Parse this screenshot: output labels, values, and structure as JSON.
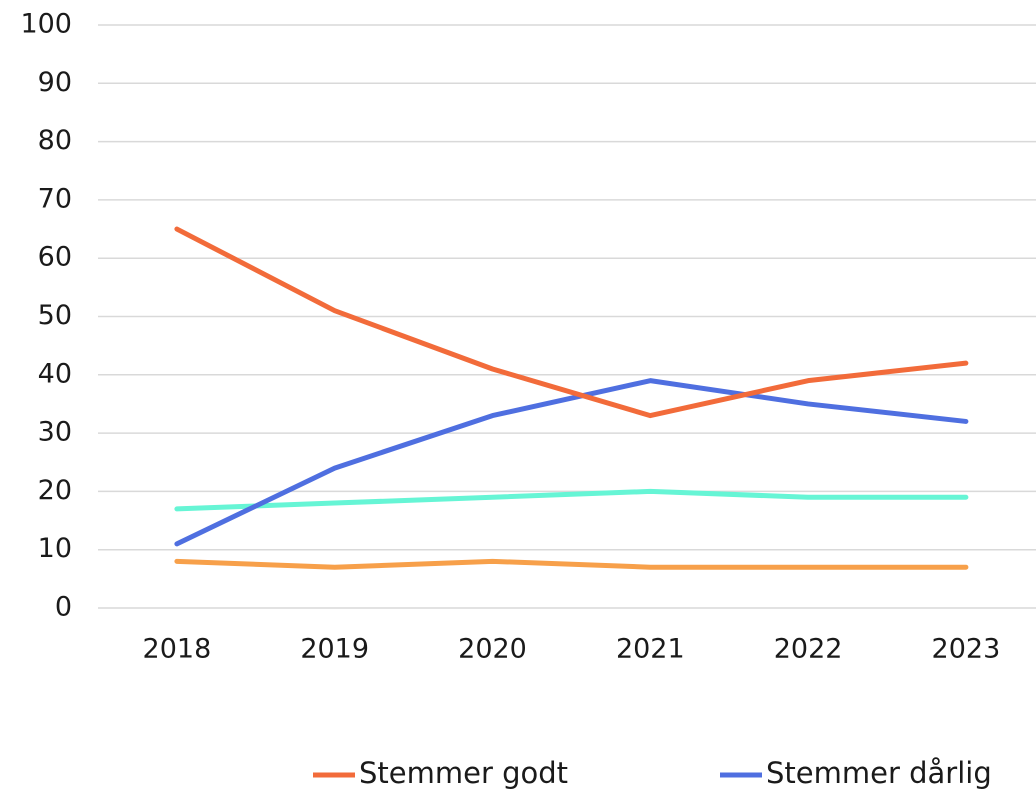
{
  "chart_data": {
    "type": "line",
    "categories": [
      "2018",
      "2019",
      "2020",
      "2021",
      "2022",
      "2023"
    ],
    "series": [
      {
        "name": "Stemmer godt",
        "color": "#f26b3a",
        "values": [
          65,
          51,
          41,
          33,
          39,
          42
        ]
      },
      {
        "name": "Stemmer dårlig",
        "color": "#4f6fe0",
        "values": [
          11,
          24,
          33,
          39,
          35,
          32
        ]
      },
      {
        "color": "#66f5d5",
        "values": [
          17,
          18,
          19,
          20,
          19,
          19
        ]
      },
      {
        "color": "#f7a04a",
        "values": [
          8,
          7,
          8,
          7,
          7,
          7
        ]
      }
    ],
    "ylim": [
      0,
      100
    ],
    "yticks": [
      0,
      10,
      20,
      30,
      40,
      50,
      60,
      70,
      80,
      90,
      100
    ],
    "grid": true,
    "legend": "bottom"
  }
}
